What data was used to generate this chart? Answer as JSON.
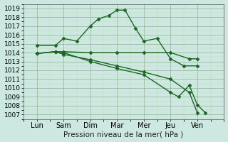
{
  "xlabel": "Pression niveau de la mer( hPa )",
  "bg_color": "#cce8e0",
  "grid_color_major": "#99bb99",
  "grid_color_minor": "#bbddbb",
  "line_color": "#1a6622",
  "ylim": [
    1006.5,
    1019.5
  ],
  "yticks": [
    1007,
    1008,
    1009,
    1010,
    1011,
    1012,
    1013,
    1014,
    1015,
    1016,
    1017,
    1018,
    1019
  ],
  "xtick_labels": [
    "Lun",
    "Sam",
    "Dim",
    "Mar",
    "Mer",
    "Jeu",
    "Ven"
  ],
  "xtick_positions": [
    1,
    2,
    3,
    4,
    5,
    6,
    7
  ],
  "xlim": [
    0.5,
    8.0
  ],
  "lines": [
    {
      "x": [
        1.0,
        1.7,
        2.0,
        2.5,
        3.0,
        3.3,
        3.7,
        4.0,
        4.3,
        4.7,
        5.0,
        5.5,
        6.0,
        6.5,
        7.0
      ],
      "y": [
        1014.8,
        1014.8,
        1015.6,
        1015.3,
        1017.0,
        1017.8,
        1018.2,
        1018.8,
        1018.8,
        1016.7,
        1015.3,
        1015.6,
        1013.3,
        1012.5,
        1012.5
      ]
    },
    {
      "x": [
        1.0,
        1.7,
        2.0,
        3.0,
        4.0,
        5.0,
        6.0,
        6.7,
        7.0
      ],
      "y": [
        1013.9,
        1014.1,
        1014.1,
        1014.0,
        1014.0,
        1014.0,
        1014.0,
        1013.3,
        1013.3
      ]
    },
    {
      "x": [
        1.0,
        1.7,
        2.0,
        3.0,
        4.0,
        5.0,
        6.0,
        6.7,
        7.0
      ],
      "y": [
        1013.9,
        1014.1,
        1013.8,
        1013.2,
        1012.5,
        1011.8,
        1011.0,
        1009.5,
        1007.2
      ]
    },
    {
      "x": [
        1.0,
        1.7,
        2.0,
        3.0,
        4.0,
        5.0,
        6.0,
        6.3,
        6.7,
        7.0,
        7.3
      ],
      "y": [
        1013.9,
        1014.1,
        1014.0,
        1013.0,
        1012.2,
        1011.5,
        1009.5,
        1009.0,
        1010.3,
        1008.1,
        1007.2
      ]
    }
  ],
  "marker": "D",
  "markersize": 2.5,
  "linewidth": 1.0,
  "fontsize_xlabel": 7.5,
  "fontsize_yticks": 6.5,
  "fontsize_xticks": 7
}
